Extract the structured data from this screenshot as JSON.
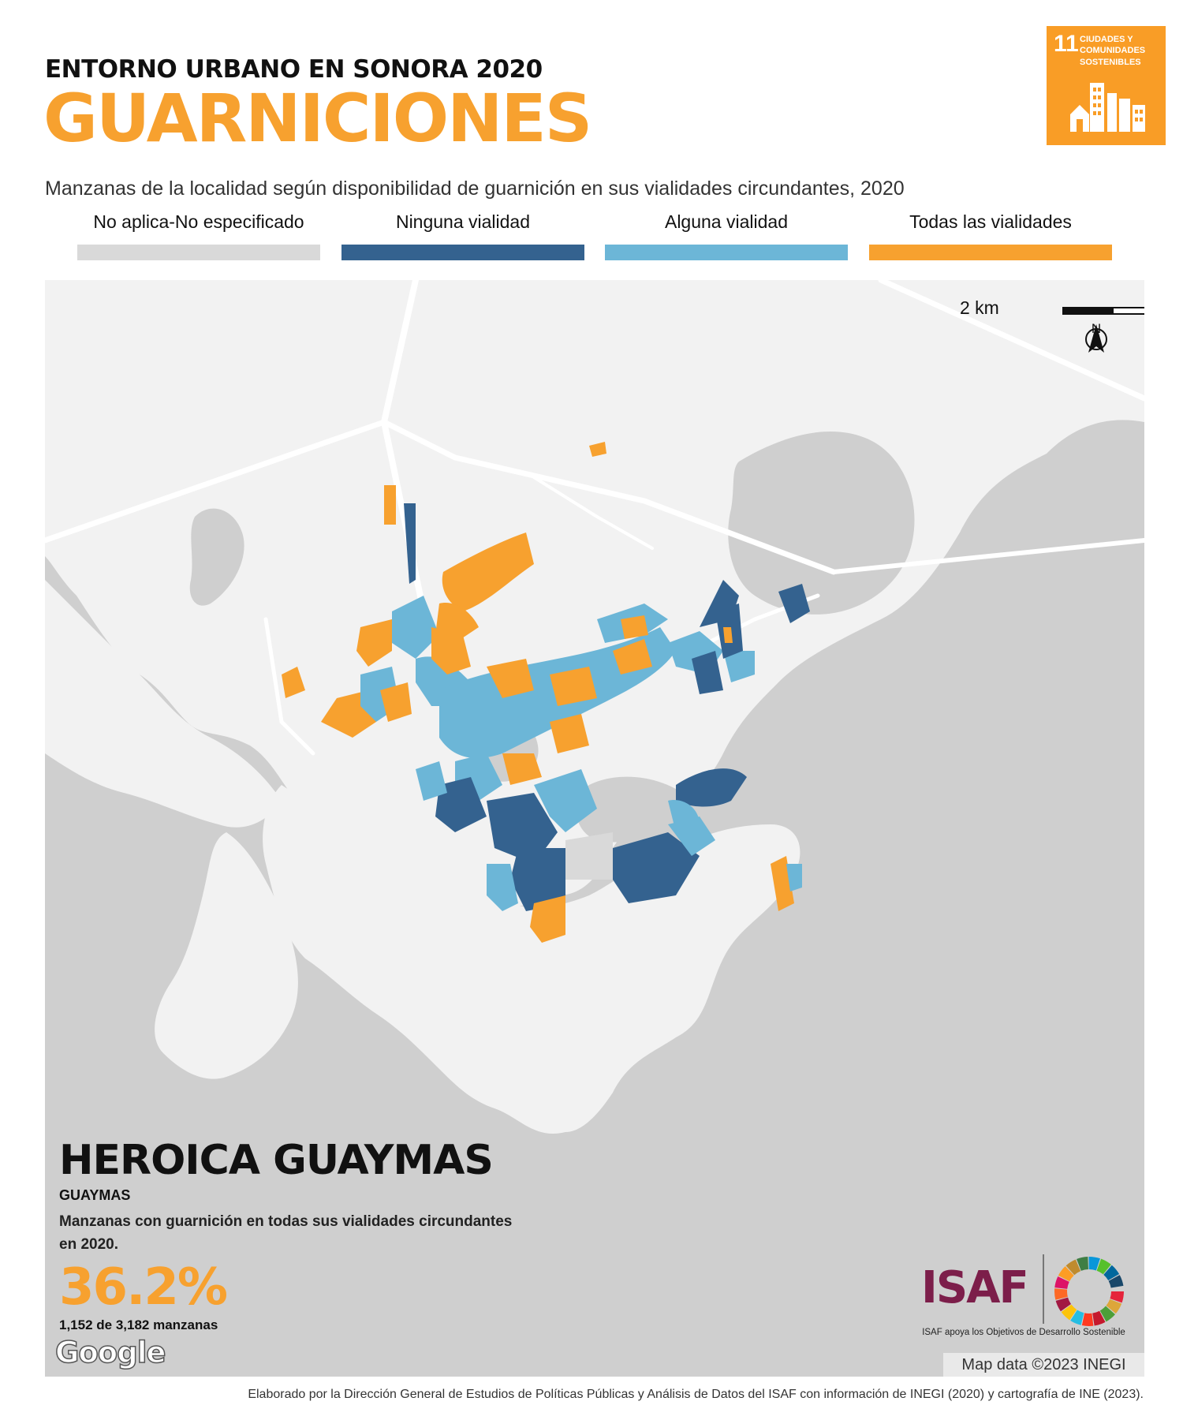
{
  "header": {
    "kicker": "ENTORNO URBANO EN SONORA 2020",
    "title": "GUARNICIONES",
    "subtitle": "Manzanas de la localidad según disponibilidad de guarnición en sus vialidades circundantes, 2020"
  },
  "sdg_badge": {
    "number": "11",
    "text": "CIUDADES Y COMUNIDADES SOSTENIBLES",
    "color": "#f99d26"
  },
  "legend": [
    {
      "label": "No aplica-No especificado",
      "color": "#d9d9d9"
    },
    {
      "label": "Ninguna vialidad",
      "color": "#34628f"
    },
    {
      "label": "Alguna vialidad",
      "color": "#6cb6d7"
    },
    {
      "label": "Todas las vialidades",
      "color": "#f7a12f"
    }
  ],
  "map": {
    "scale_label": "2 km",
    "north_label": "N",
    "water_color": "#cfcfcf",
    "land_color": "#f2f2f2",
    "road_color": "#ffffff"
  },
  "locality": {
    "name": "HEROICA GUAYMAS",
    "municipality": "GUAYMAS",
    "description": "Manzanas con guarnición en todas sus vialidades circundantes en 2020.",
    "percentage": "36.2%",
    "count_text": "1,152 de 3,182 manzanas"
  },
  "branding": {
    "isaf": "ISAF",
    "isaf_caption": "ISAF apoya los Objetivos de Desarrollo Sostenible",
    "google": "Google",
    "attribution": "Map data ©2023 INEGI"
  },
  "footer": "Elaborado por la Dirección General de Estudios de Políticas Públicas y Análisis de Datos del ISAF con información de INEGI (2020) y cartografía de INE (2023)."
}
